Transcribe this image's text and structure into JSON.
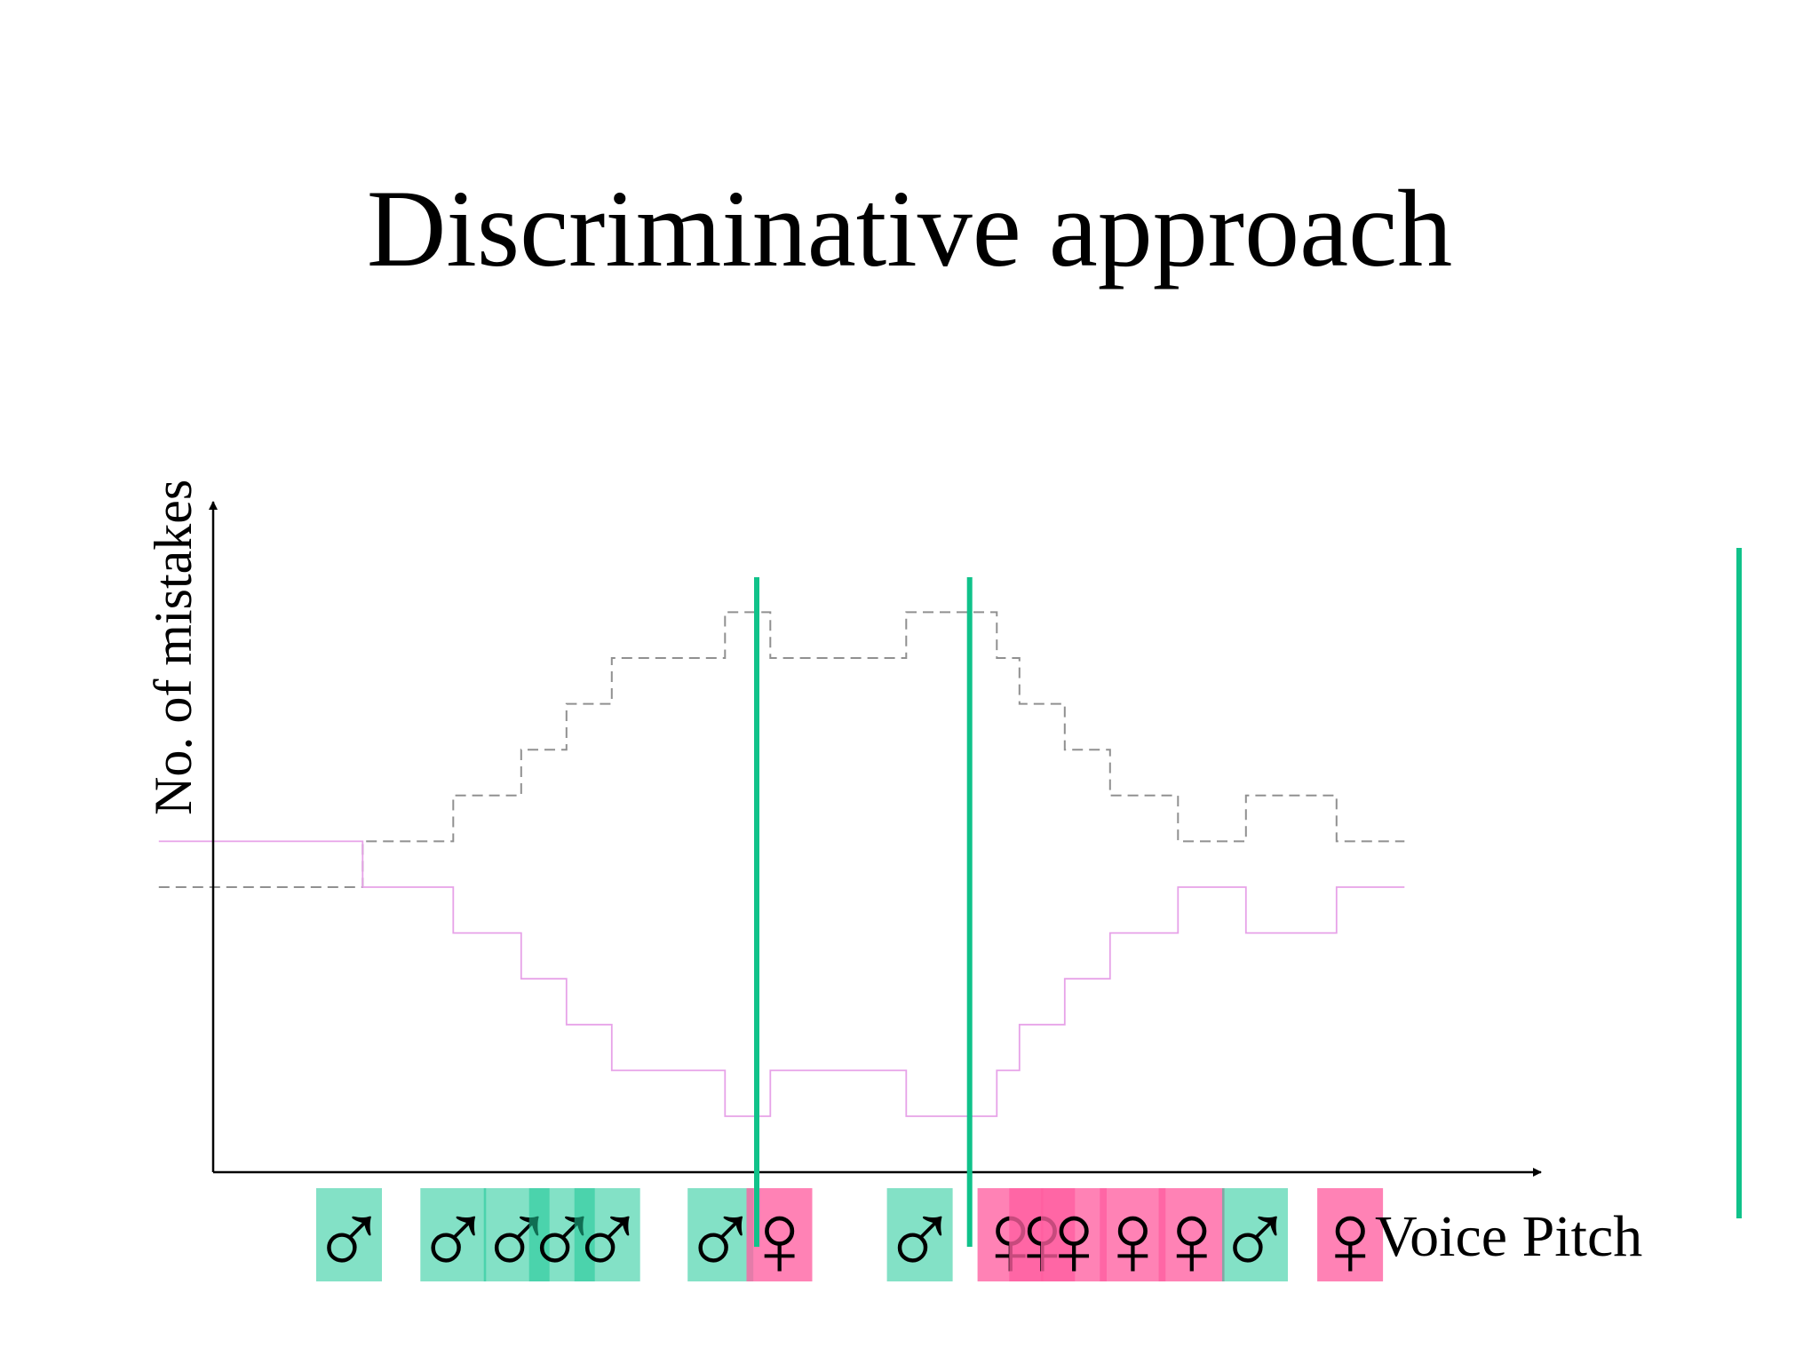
{
  "title": "Discriminative approach",
  "chart_data": {
    "type": "line",
    "xlabel": "Voice Pitch",
    "ylabel": "No. of mistakes",
    "grid": false,
    "legend": "none",
    "x_range": [
      0,
      30
    ],
    "y_range": [
      0,
      12
    ],
    "thresholds": [
      12,
      16.7
    ],
    "colors": {
      "male": "#1ec998",
      "female": "#ff5fa0",
      "female_overlap": "#ff3a86",
      "threshold": "#10c28a",
      "axis": "#000000",
      "dashed_series": "#909090",
      "solid_series": "#e7a2e8"
    },
    "samples": [
      {
        "x": 3.0,
        "label": "male",
        "glyph": "♂"
      },
      {
        "x": 5.3,
        "label": "male",
        "glyph": "♂"
      },
      {
        "x": 6.7,
        "label": "male",
        "glyph": "♂"
      },
      {
        "x": 7.7,
        "label": "male",
        "glyph": "♂"
      },
      {
        "x": 8.7,
        "label": "male",
        "glyph": "♂"
      },
      {
        "x": 11.2,
        "label": "male",
        "glyph": "♂"
      },
      {
        "x": 12.5,
        "label": "female",
        "glyph": "♀"
      },
      {
        "x": 15.6,
        "label": "male",
        "glyph": "♂"
      },
      {
        "x": 17.6,
        "label": "female",
        "glyph": "♀"
      },
      {
        "x": 18.3,
        "label": "female",
        "glyph": "♀"
      },
      {
        "x": 19.0,
        "label": "female",
        "glyph": "♀"
      },
      {
        "x": 20.3,
        "label": "female",
        "glyph": "♀"
      },
      {
        "x": 21.6,
        "label": "female",
        "glyph": "♀"
      },
      {
        "x": 23.0,
        "label": "male",
        "glyph": "♂"
      },
      {
        "x": 25.1,
        "label": "female",
        "glyph": "♀"
      }
    ],
    "series": [
      {
        "style": "dashed",
        "points": [
          [
            -1.2,
            5
          ],
          [
            3.3,
            5
          ],
          [
            3.3,
            6
          ],
          [
            5.3,
            6
          ],
          [
            5.3,
            7
          ],
          [
            6.8,
            7
          ],
          [
            6.8,
            8
          ],
          [
            7.8,
            8
          ],
          [
            7.8,
            9
          ],
          [
            8.8,
            9
          ],
          [
            8.8,
            10
          ],
          [
            11.3,
            10
          ],
          [
            11.3,
            11
          ],
          [
            12.3,
            11
          ],
          [
            12.3,
            10
          ],
          [
            15.3,
            10
          ],
          [
            15.3,
            11
          ],
          [
            17.3,
            11
          ],
          [
            17.3,
            10
          ],
          [
            17.8,
            10
          ],
          [
            17.8,
            9
          ],
          [
            18.8,
            9
          ],
          [
            18.8,
            8
          ],
          [
            19.8,
            8
          ],
          [
            19.8,
            7
          ],
          [
            21.3,
            7
          ],
          [
            21.3,
            6
          ],
          [
            22.8,
            6
          ],
          [
            22.8,
            7
          ],
          [
            24.8,
            7
          ],
          [
            24.8,
            6
          ],
          [
            26.3,
            6
          ]
        ]
      },
      {
        "style": "solid",
        "points": [
          [
            -1.2,
            6
          ],
          [
            3.3,
            6
          ],
          [
            3.3,
            5
          ],
          [
            5.3,
            5
          ],
          [
            5.3,
            4
          ],
          [
            6.8,
            4
          ],
          [
            6.8,
            3
          ],
          [
            7.8,
            3
          ],
          [
            7.8,
            2
          ],
          [
            8.8,
            2
          ],
          [
            8.8,
            1
          ],
          [
            11.3,
            1
          ],
          [
            11.3,
            0
          ],
          [
            12.3,
            0
          ],
          [
            12.3,
            1
          ],
          [
            15.3,
            1
          ],
          [
            15.3,
            0
          ],
          [
            17.3,
            0
          ],
          [
            17.3,
            1
          ],
          [
            17.8,
            1
          ],
          [
            17.8,
            2
          ],
          [
            18.8,
            2
          ],
          [
            18.8,
            3
          ],
          [
            19.8,
            3
          ],
          [
            19.8,
            4
          ],
          [
            21.3,
            4
          ],
          [
            21.3,
            5
          ],
          [
            22.8,
            5
          ],
          [
            22.8,
            4
          ],
          [
            24.8,
            4
          ],
          [
            24.8,
            5
          ],
          [
            26.3,
            5
          ]
        ]
      }
    ]
  }
}
